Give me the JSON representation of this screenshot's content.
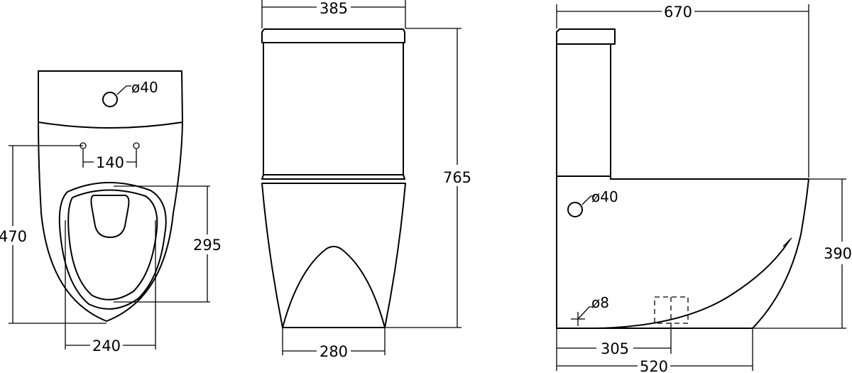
{
  "top_view": {
    "hole_label": "ø40",
    "dim_140": "140",
    "dim_470": "470",
    "dim_295": "295",
    "dim_240": "240"
  },
  "front_view": {
    "dim_385": "385",
    "dim_765": "765",
    "dim_280": "280"
  },
  "side_view": {
    "dim_670": "670",
    "hole_label": "ø40",
    "small_hole_label": "ø8",
    "dim_390": "390",
    "dim_305": "305",
    "dim_520": "520"
  }
}
